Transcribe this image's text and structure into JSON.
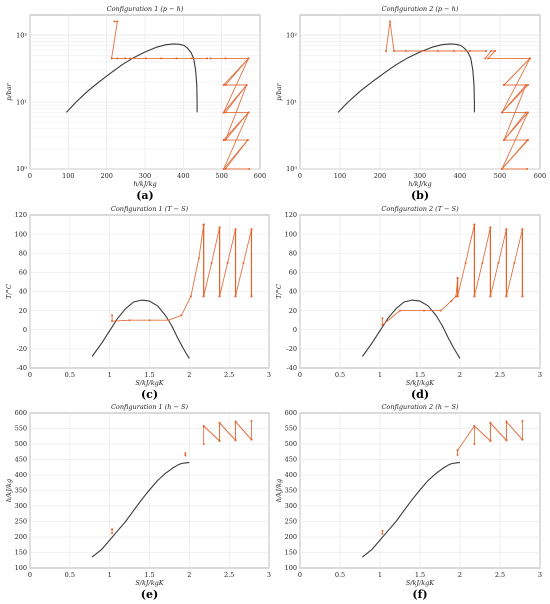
{
  "charts": [
    {
      "id": "a",
      "panel_label": "(a)",
      "title": "Configuration 1 (p − h)",
      "xlabel": "h/kJ/kg",
      "ylabel": "p/bar"
    },
    {
      "id": "b",
      "panel_label": "(b)",
      "title": "Configuration 2 (p − h)",
      "xlabel": "h/kJ/kg",
      "ylabel": "p/bar"
    },
    {
      "id": "c",
      "panel_label": "(c)",
      "title": "Configuration 1 (T − S)",
      "xlabel": "S/kJ/kgK",
      "ylabel": "T/°C"
    },
    {
      "id": "d",
      "panel_label": "(d)",
      "title": "Configuration 2 (T − S)",
      "xlabel": "S/kJ/kgK",
      "ylabel": "T/°C"
    },
    {
      "id": "e",
      "panel_label": "(e)",
      "title": "Configuration 1 (h − S)",
      "xlabel": "S/kJ/kgK",
      "ylabel": "h/kJ/kg"
    },
    {
      "id": "f",
      "panel_label": "(f)",
      "title": "Configuration 2 (h − S)",
      "xlabel": "S/kJ/kgK",
      "ylabel": "h/kJ/kg"
    }
  ],
  "chart_data": [
    {
      "type": "line",
      "scale_y": "log",
      "grid": true,
      "title": "Configuration 1 (p − h)",
      "xlabel": "h/kJ/kg",
      "ylabel": "p/bar",
      "xlim": [
        0,
        600
      ],
      "ylim": [
        1,
        200
      ],
      "xticks": [
        0,
        100,
        200,
        300,
        400,
        500,
        600
      ],
      "yticks": [
        1,
        10,
        100
      ],
      "xticklabels": [
        "0",
        "100",
        "200",
        "300",
        "400",
        "500",
        "600"
      ],
      "yticklabels": [
        "10⁰",
        "10¹",
        "10²"
      ],
      "series": [
        {
          "role": "dome",
          "x": [
            95,
            120,
            150,
            180,
            210,
            240,
            270,
            300,
            330,
            355,
            375,
            390,
            402,
            412,
            420,
            427,
            432,
            435,
            436,
            436
          ],
          "y": [
            7.0,
            10,
            14.5,
            20,
            27,
            36,
            46,
            56,
            66,
            72,
            74,
            73,
            70,
            63,
            55,
            45,
            30,
            18,
            10,
            7
          ]
        },
        {
          "role": "process",
          "x": [
            220,
            228,
            213,
            228,
            248,
            262,
            302,
            342,
            382,
            422,
            462
          ],
          "y": [
            160,
            160,
            45,
            45,
            45,
            45,
            45,
            45,
            45,
            45,
            45
          ]
        },
        {
          "role": "process",
          "x": [
            470,
            510,
            570,
            505,
            565,
            510,
            570,
            505,
            568,
            510,
            572
          ],
          "y": [
            45,
            45,
            45,
            18,
            18,
            7,
            7,
            2.7,
            2.7,
            1,
            1
          ]
        },
        {
          "role": "process",
          "x": [
            510,
            570,
            505,
            565,
            510,
            570,
            505,
            568
          ],
          "y": [
            18,
            45,
            7,
            18,
            2.7,
            7,
            1,
            2.7
          ]
        }
      ]
    },
    {
      "type": "line",
      "scale_y": "log",
      "grid": true,
      "title": "Configuration 2 (p − h)",
      "xlabel": "h/kJ/kg",
      "ylabel": "p/bar",
      "xlim": [
        0,
        600
      ],
      "ylim": [
        1,
        200
      ],
      "xticks": [
        0,
        100,
        200,
        300,
        400,
        500,
        600
      ],
      "yticks": [
        1,
        10,
        100
      ],
      "xticklabels": [
        "0",
        "100",
        "200",
        "300",
        "400",
        "500",
        "600"
      ],
      "yticklabels": [
        "10⁰",
        "10¹",
        "10²"
      ],
      "series": [
        {
          "role": "dome",
          "x": [
            95,
            120,
            150,
            180,
            210,
            240,
            270,
            300,
            330,
            355,
            375,
            390,
            402,
            412,
            420,
            427,
            432,
            435,
            436,
            436
          ],
          "y": [
            7.0,
            10,
            14.5,
            20,
            27,
            36,
            46,
            56,
            66,
            72,
            74,
            73,
            70,
            63,
            55,
            45,
            30,
            18,
            10,
            7
          ]
        },
        {
          "role": "process",
          "x": [
            215,
            225,
            235,
            265,
            305,
            345,
            385,
            425,
            465
          ],
          "y": [
            58,
            160,
            58,
            58,
            58,
            58,
            58,
            58,
            58
          ]
        },
        {
          "role": "process",
          "x": [
            463,
            478,
            488,
            470,
            575,
            510,
            570,
            505,
            565,
            510,
            570,
            505,
            568
          ],
          "y": [
            45,
            58,
            58,
            45,
            45,
            18,
            18,
            7,
            7,
            2.7,
            2.7,
            1,
            1
          ]
        },
        {
          "role": "process",
          "x": [
            510,
            575,
            505,
            565,
            510,
            570,
            505,
            568
          ],
          "y": [
            18,
            45,
            7,
            18,
            2.7,
            7,
            1,
            2.7
          ]
        }
      ]
    },
    {
      "type": "line",
      "grid": true,
      "title": "Configuration 1 (T − S)",
      "xlabel": "S/kJ/kgK",
      "ylabel": "T/°C",
      "xlim": [
        0,
        3
      ],
      "ylim": [
        -40,
        120
      ],
      "xticks": [
        0,
        0.5,
        1,
        1.5,
        2,
        2.5,
        3
      ],
      "yticks": [
        -40,
        -20,
        0,
        20,
        40,
        60,
        80,
        100,
        120
      ],
      "series": [
        {
          "role": "dome",
          "x": [
            0.78,
            0.9,
            1.0,
            1.1,
            1.2,
            1.3,
            1.4,
            1.5,
            1.6,
            1.7,
            1.78,
            1.85,
            1.92,
            1.97,
            2.0
          ],
          "y": [
            -28,
            -14,
            -1,
            12,
            22,
            29,
            31,
            30,
            25,
            15,
            4,
            -8,
            -19,
            -26,
            -30
          ]
        },
        {
          "role": "process",
          "x": [
            1.03,
            1.03,
            1.25,
            1.5,
            1.74,
            1.9,
            2.02,
            2.12,
            2.18
          ],
          "y": [
            15,
            9,
            10,
            10,
            10,
            15,
            35,
            75,
            110
          ]
        },
        {
          "role": "process",
          "x": [
            2.18,
            2.18,
            2.28,
            2.38,
            2.38,
            2.48,
            2.58,
            2.58,
            2.68,
            2.78,
            2.78
          ],
          "y": [
            110,
            35,
            70,
            107,
            35,
            70,
            105,
            35,
            70,
            105,
            35
          ]
        },
        {
          "role": "stage",
          "x": [
            2.18,
            2.38,
            2.58,
            2.78
          ],
          "ymin": 35,
          "ymax": [
            110,
            107,
            105,
            105
          ]
        }
      ]
    },
    {
      "type": "line",
      "grid": true,
      "title": "Configuration 2 (T − S)",
      "xlabel": "S/kJ/kgK",
      "ylabel": "T/°C",
      "xlim": [
        0,
        3
      ],
      "ylim": [
        -40,
        120
      ],
      "xticks": [
        0,
        0.5,
        1,
        1.5,
        2,
        2.5,
        3
      ],
      "yticks": [
        -40,
        -20,
        0,
        20,
        40,
        60,
        80,
        100,
        120
      ],
      "series": [
        {
          "role": "dome",
          "x": [
            0.78,
            0.9,
            1.0,
            1.1,
            1.2,
            1.3,
            1.4,
            1.5,
            1.6,
            1.7,
            1.78,
            1.85,
            1.92,
            1.97,
            2.0
          ],
          "y": [
            -28,
            -14,
            -1,
            12,
            22,
            29,
            31,
            30,
            25,
            15,
            4,
            -8,
            -19,
            -26,
            -30
          ]
        },
        {
          "role": "process",
          "x": [
            1.03,
            1.03,
            1.25,
            1.55,
            1.76,
            1.89,
            1.95
          ],
          "y": [
            12,
            5,
            20,
            20,
            20,
            30,
            35
          ]
        },
        {
          "role": "process",
          "x": [
            1.95,
            1.97,
            1.97,
            2.07,
            2.18,
            2.18,
            2.28,
            2.38,
            2.38,
            2.48,
            2.58,
            2.58,
            2.68,
            2.78,
            2.78
          ],
          "y": [
            35,
            54,
            35,
            70,
            110,
            35,
            70,
            107,
            35,
            70,
            105,
            35,
            70,
            105,
            35
          ]
        },
        {
          "role": "stage",
          "x": [
            1.97,
            2.18,
            2.38,
            2.58,
            2.78
          ],
          "ymin": 35,
          "ymax": [
            54,
            110,
            107,
            105,
            105
          ]
        }
      ]
    },
    {
      "type": "line",
      "grid": true,
      "title": "Configuration 1 (h − S)",
      "xlabel": "S/kJ/kgK",
      "ylabel": "h/kJ/kg",
      "xlim": [
        0,
        3
      ],
      "ylim": [
        100,
        600
      ],
      "xticks": [
        0,
        0.5,
        1,
        1.5,
        2,
        2.5,
        3
      ],
      "yticks": [
        100,
        150,
        200,
        250,
        300,
        350,
        400,
        450,
        500,
        550,
        600
      ],
      "series": [
        {
          "role": "dome",
          "x": [
            0.78,
            0.9,
            1.0,
            1.1,
            1.2,
            1.3,
            1.4,
            1.5,
            1.6,
            1.7,
            1.8,
            1.86,
            1.9,
            1.95,
            2.0
          ],
          "y": [
            135,
            160,
            190,
            220,
            250,
            285,
            320,
            352,
            382,
            405,
            424,
            433,
            437,
            439,
            440
          ]
        },
        {
          "role": "process",
          "x": [
            1.03,
            1.03
          ],
          "y": [
            212,
            225
          ]
        },
        {
          "role": "process",
          "x": [
            1.95,
            1.95
          ],
          "y": [
            463,
            470
          ]
        },
        {
          "role": "process",
          "x": [
            2.18,
            2.18,
            2.38,
            2.38,
            2.58,
            2.58,
            2.78,
            2.78
          ],
          "y": [
            500,
            558,
            510,
            568,
            512,
            572,
            514,
            574
          ]
        },
        {
          "role": "process",
          "x": [
            2.18,
            2.38,
            2.38,
            2.58,
            2.58,
            2.78
          ],
          "y": [
            558,
            510,
            568,
            512,
            572,
            514
          ]
        }
      ]
    },
    {
      "type": "line",
      "grid": true,
      "title": "Configuration 2 (h − S)",
      "xlabel": "S/kJ/kgK",
      "ylabel": "h/kJ/kg",
      "xlim": [
        0,
        3
      ],
      "ylim": [
        100,
        600
      ],
      "xticks": [
        0,
        0.5,
        1,
        1.5,
        2,
        2.5,
        3
      ],
      "yticks": [
        100,
        150,
        200,
        250,
        300,
        350,
        400,
        450,
        500,
        550,
        600
      ],
      "series": [
        {
          "role": "dome",
          "x": [
            0.78,
            0.9,
            1.0,
            1.1,
            1.2,
            1.3,
            1.4,
            1.5,
            1.6,
            1.7,
            1.8,
            1.86,
            1.9,
            1.95,
            2.0
          ],
          "y": [
            135,
            160,
            190,
            220,
            250,
            285,
            320,
            352,
            382,
            405,
            424,
            433,
            437,
            439,
            440
          ]
        },
        {
          "role": "process",
          "x": [
            1.03,
            1.03
          ],
          "y": [
            210,
            220
          ]
        },
        {
          "role": "process",
          "x": [
            1.97,
            1.97
          ],
          "y": [
            465,
            480
          ]
        },
        {
          "role": "process",
          "x": [
            2.18,
            2.18,
            2.38,
            2.38,
            2.58,
            2.58,
            2.78,
            2.78
          ],
          "y": [
            500,
            558,
            510,
            568,
            512,
            572,
            514,
            574
          ]
        },
        {
          "role": "process",
          "x": [
            1.97,
            2.18,
            2.38,
            2.38,
            2.58,
            2.58,
            2.78
          ],
          "y": [
            480,
            558,
            510,
            568,
            512,
            572,
            514
          ]
        }
      ]
    }
  ],
  "colors": {
    "dome": "#3a3a3a",
    "process": "#e8632a",
    "guide": "#c8c8c8",
    "grid": "#e6e6e6",
    "axis": "#555555",
    "text": "#222222"
  }
}
